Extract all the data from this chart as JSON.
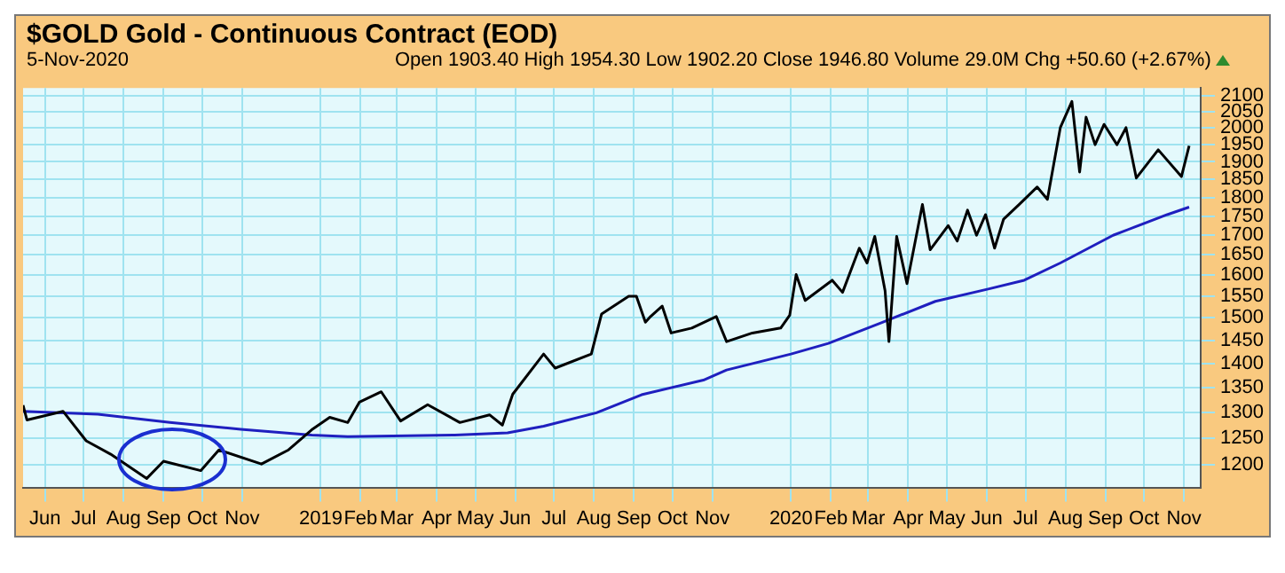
{
  "chart_data": {
    "type": "line",
    "title": "$GOLD Gold - Continuous Contract (EOD)",
    "subtitle": "5-Nov-2020",
    "annotations": [
      "Open 1903.40 High 1954.30 Low 1902.20 Close 1946.80 Volume 29.0M Chg +50.60 (+2.67%)"
    ],
    "log": "y",
    "grid": true,
    "marker": "none",
    "line_style": "solid",
    "legend": false,
    "xlim": [
      "2018-05-15",
      "2020-11-14"
    ],
    "xticks": [
      {
        "value": "2018-06-01",
        "label": "Jun"
      },
      {
        "value": "2018-07-01",
        "label": "Jul"
      },
      {
        "value": "2018-08-01",
        "label": "Aug"
      },
      {
        "value": "2018-09-01",
        "label": "Sep"
      },
      {
        "value": "2018-10-01",
        "label": "Oct"
      },
      {
        "value": "2018-11-01",
        "label": "Nov"
      },
      {
        "value": "2019-01-01",
        "label": "2019"
      },
      {
        "value": "2019-02-01",
        "label": "Feb"
      },
      {
        "value": "2019-03-01",
        "label": "Mar"
      },
      {
        "value": "2019-04-01",
        "label": "Apr"
      },
      {
        "value": "2019-05-01",
        "label": "May"
      },
      {
        "value": "2019-06-01",
        "label": "Jun"
      },
      {
        "value": "2019-07-01",
        "label": "Jul"
      },
      {
        "value": "2019-08-01",
        "label": "Aug"
      },
      {
        "value": "2019-09-01",
        "label": "Sep"
      },
      {
        "value": "2019-10-01",
        "label": "Oct"
      },
      {
        "value": "2019-11-01",
        "label": "Nov"
      },
      {
        "value": "2020-01-01",
        "label": "2020"
      },
      {
        "value": "2020-02-01",
        "label": "Feb"
      },
      {
        "value": "2020-03-01",
        "label": "Mar"
      },
      {
        "value": "2020-04-01",
        "label": "Apr"
      },
      {
        "value": "2020-05-01",
        "label": "May"
      },
      {
        "value": "2020-06-01",
        "label": "Jun"
      },
      {
        "value": "2020-07-01",
        "label": "Jul"
      },
      {
        "value": "2020-08-01",
        "label": "Aug"
      },
      {
        "value": "2020-09-01",
        "label": "Sep"
      },
      {
        "value": "2020-10-01",
        "label": "Oct"
      },
      {
        "value": "2020-11-01",
        "label": "Nov"
      }
    ],
    "ylim": [
      1160,
      2125
    ],
    "yticks": [
      1200,
      1250,
      1300,
      1350,
      1400,
      1450,
      1500,
      1550,
      1600,
      1650,
      1700,
      1750,
      1800,
      1850,
      1900,
      1950,
      2000,
      2050,
      2100
    ],
    "series": [
      {
        "color": "#000000",
        "x": [
          "2018-05-15",
          "2018-05-18",
          "2018-06-15",
          "2018-07-03",
          "2018-07-22",
          "2018-08-19",
          "2018-09-01",
          "2018-09-30",
          "2018-10-14",
          "2018-11-16",
          "2018-12-07",
          "2018-12-25",
          "2019-01-08",
          "2019-01-22",
          "2019-01-31",
          "2019-02-17",
          "2019-03-04",
          "2019-03-25",
          "2019-04-19",
          "2019-05-12",
          "2019-05-22",
          "2019-05-30",
          "2019-06-23",
          "2019-07-02",
          "2019-07-30",
          "2019-08-07",
          "2019-08-28",
          "2019-09-03",
          "2019-09-10",
          "2019-09-14",
          "2019-09-23",
          "2019-09-30",
          "2019-10-16",
          "2019-11-04",
          "2019-11-12",
          "2019-12-02",
          "2019-12-24",
          "2019-12-31",
          "2020-01-05",
          "2020-01-12",
          "2020-02-02",
          "2020-02-10",
          "2020-02-23",
          "2020-02-29",
          "2020-03-06",
          "2020-03-14",
          "2020-03-17",
          "2020-03-23",
          "2020-03-31",
          "2020-04-12",
          "2020-04-18",
          "2020-05-02",
          "2020-05-09",
          "2020-05-17",
          "2020-05-24",
          "2020-05-31",
          "2020-06-07",
          "2020-06-14",
          "2020-06-26",
          "2020-07-10",
          "2020-07-18",
          "2020-07-28",
          "2020-08-06",
          "2020-08-12",
          "2020-08-17",
          "2020-08-24",
          "2020-08-31",
          "2020-09-10",
          "2020-09-17",
          "2020-09-25",
          "2020-10-12",
          "2020-10-30",
          "2020-11-05"
        ],
        "values": [
          1314,
          1285,
          1302,
          1245,
          1220,
          1176,
          1207,
          1190,
          1228,
          1202,
          1228,
          1266,
          1290,
          1280,
          1320,
          1341,
          1283,
          1315,
          1280,
          1295,
          1275,
          1336,
          1420,
          1390,
          1420,
          1509,
          1550,
          1550,
          1490,
          1503,
          1527,
          1466,
          1477,
          1503,
          1447,
          1466,
          1477,
          1506,
          1602,
          1540,
          1588,
          1559,
          1667,
          1630,
          1697,
          1563,
          1447,
          1697,
          1580,
          1781,
          1663,
          1725,
          1685,
          1766,
          1700,
          1754,
          1667,
          1742,
          1781,
          1829,
          1795,
          2001,
          2082,
          1871,
          2033,
          1950,
          2011,
          1950,
          2001,
          1854,
          1935,
          1858,
          1946.8
        ]
      },
      {
        "color": "#1f1fbf",
        "x": [
          "2018-05-15",
          "2018-07-12",
          "2018-09-06",
          "2018-10-31",
          "2018-12-25",
          "2019-01-22",
          "2019-04-15",
          "2019-05-26",
          "2019-06-23",
          "2019-08-03",
          "2019-09-07",
          "2019-10-25",
          "2019-11-12",
          "2020-01-01",
          "2020-01-30",
          "2020-03-12",
          "2020-04-22",
          "2020-06-02",
          "2020-06-30",
          "2020-07-28",
          "2020-09-07",
          "2020-10-19",
          "2020-11-05"
        ],
        "values": [
          1302,
          1296,
          1280,
          1267,
          1256,
          1253,
          1256,
          1260,
          1273,
          1299,
          1335,
          1365,
          1386,
          1420,
          1443,
          1490,
          1538,
          1567,
          1588,
          1630,
          1700,
          1754,
          1774
        ]
      }
    ]
  }
}
